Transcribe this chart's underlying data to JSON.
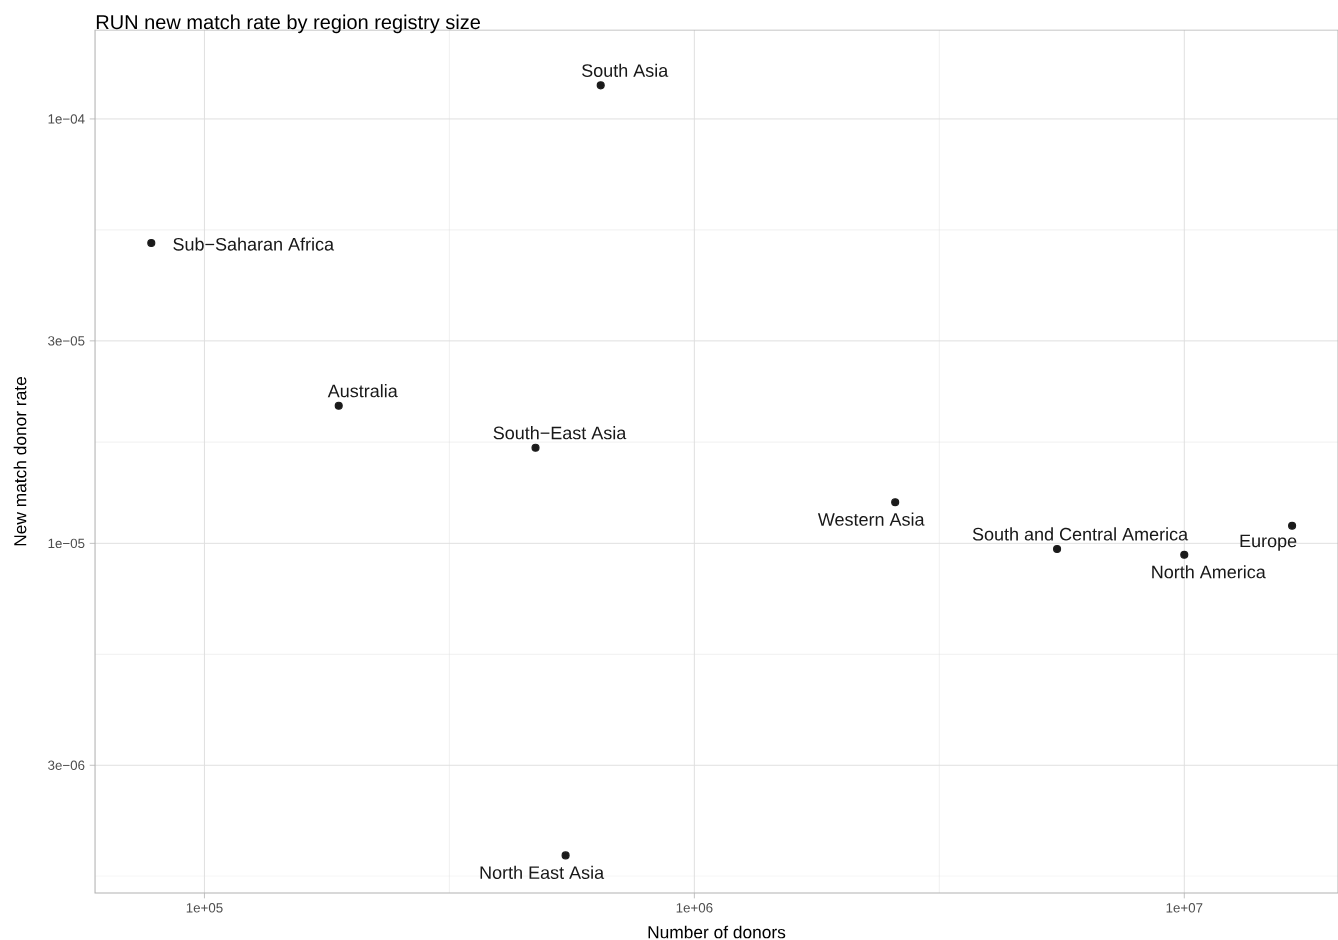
{
  "chart_data": {
    "type": "scatter",
    "title": "RUN new match rate by region registry size",
    "xlabel": "Number of donors",
    "ylabel": "New match donor rate",
    "log": "xy",
    "color": "#1a1a1a",
    "marker": "circle",
    "grid": true,
    "x": [
      644000,
      77900,
      188000,
      474000,
      2570000,
      5500000,
      10000000,
      16600000,
      546000
    ],
    "values": [
      0.00012,
      5.1e-05,
      2.11e-05,
      1.68e-05,
      1.25e-05,
      9.7e-06,
      9.4e-06,
      1.1e-05,
      1.84e-06
    ],
    "xlim": [
      59800,
      20600000
    ],
    "ylim": [
      1.5e-06,
      0.000162
    ],
    "xticks": [
      {
        "value": 100000,
        "label": "1e+05"
      },
      {
        "value": 1000000,
        "label": "1e+06"
      },
      {
        "value": 10000000,
        "label": "1e+07"
      }
    ],
    "yticks": [
      {
        "value": 3e-06,
        "label": "3e−06"
      },
      {
        "value": 1e-05,
        "label": "1e−05"
      },
      {
        "value": 3e-05,
        "label": "3e−05"
      },
      {
        "value": 0.0001,
        "label": "1e−04"
      }
    ],
    "annotations": [
      {
        "text": "South Asia",
        "x": 644000,
        "y": 0.00012
      },
      {
        "text": "Sub−Saharan Africa",
        "x": 77900,
        "y": 5.1e-05
      },
      {
        "text": "Australia",
        "x": 188000,
        "y": 2.11e-05
      },
      {
        "text": "South−East Asia",
        "x": 474000,
        "y": 1.68e-05
      },
      {
        "text": "Western Asia",
        "x": 2570000,
        "y": 1.25e-05
      },
      {
        "text": "South and Central America",
        "x": 5500000,
        "y": 9.7e-06
      },
      {
        "text": "North America",
        "x": 10000000,
        "y": 9.4e-06
      },
      {
        "text": "Europe",
        "x": 16600000,
        "y": 1.1e-05
      },
      {
        "text": "North East Asia",
        "x": 546000,
        "y": 1.84e-06
      }
    ]
  }
}
